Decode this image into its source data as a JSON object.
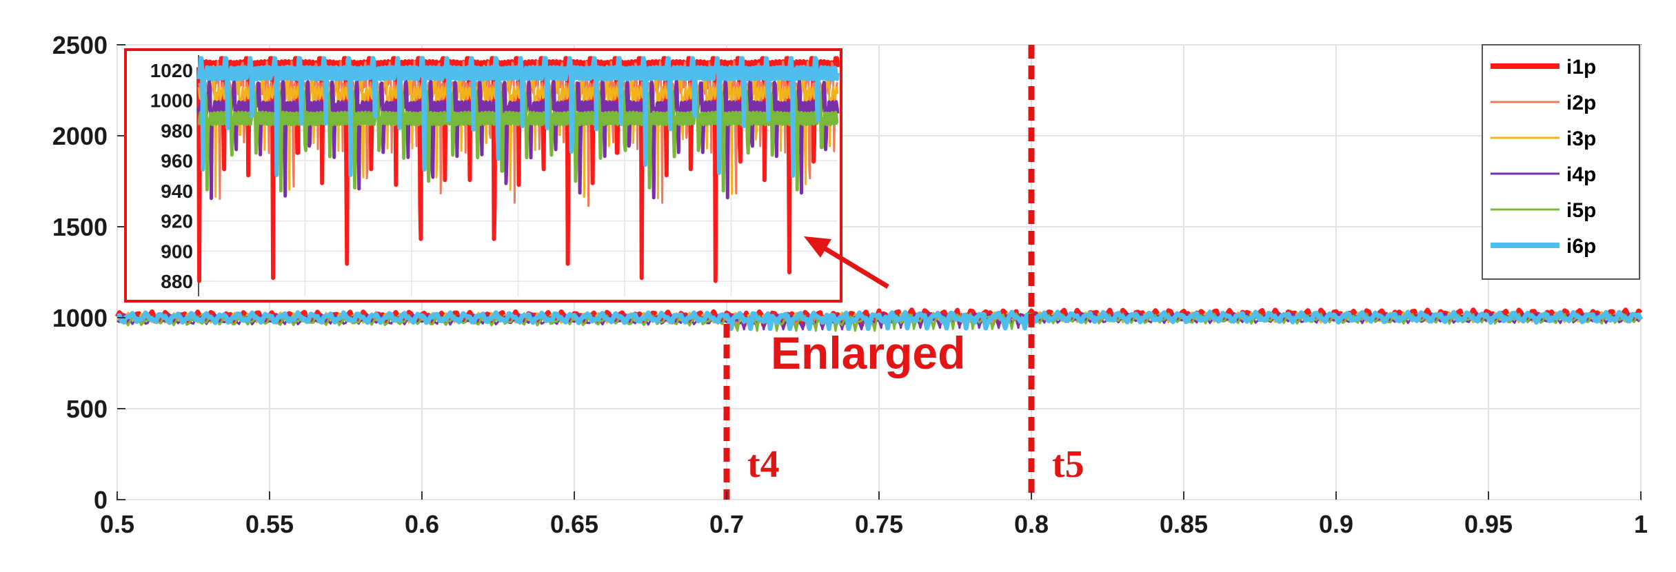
{
  "chart_data": {
    "type": "line",
    "title": "",
    "xlabel": "",
    "ylabel": "",
    "xlim": [
      0.5,
      1.0
    ],
    "ylim": [
      0,
      2500
    ],
    "x_ticks": [
      "0.5",
      "0.55",
      "0.6",
      "0.65",
      "0.7",
      "0.75",
      "0.8",
      "0.85",
      "0.9",
      "0.95",
      "1"
    ],
    "y_ticks": [
      "0",
      "500",
      "1000",
      "1500",
      "2000",
      "2500"
    ],
    "grid": true,
    "legend_position": "top-right",
    "series": [
      {
        "name": "i1p",
        "color": "#ff1a1a",
        "level_before": 1005,
        "level_after": 1015,
        "dip_min": 880
      },
      {
        "name": "i2p",
        "color": "#f07a5a",
        "level_before": 995,
        "level_after": 1000,
        "dip_min": 930
      },
      {
        "name": "i3p",
        "color": "#f2b21a",
        "level_before": 1000,
        "level_after": 1002,
        "dip_min": 935
      },
      {
        "name": "i4p",
        "color": "#7a2ea8",
        "level_before": 990,
        "level_after": 998,
        "dip_min": 935
      },
      {
        "name": "i5p",
        "color": "#7ab83a",
        "level_before": 985,
        "level_after": 995,
        "dip_min": 940
      },
      {
        "name": "i6p",
        "color": "#4dbeee",
        "level_before": 1000,
        "level_after": 1003,
        "dip_min": 950
      }
    ],
    "markers": [
      {
        "label": "t4",
        "x": 0.7,
        "color": "#e31414"
      },
      {
        "label": "t5",
        "x": 0.8,
        "color": "#e31414"
      }
    ],
    "inset": {
      "annotation": "Enlarged",
      "ylim": [
        870,
        1030
      ],
      "y_ticks": [
        "880",
        "900",
        "920",
        "940",
        "960",
        "980",
        "1000",
        "1020"
      ]
    }
  }
}
